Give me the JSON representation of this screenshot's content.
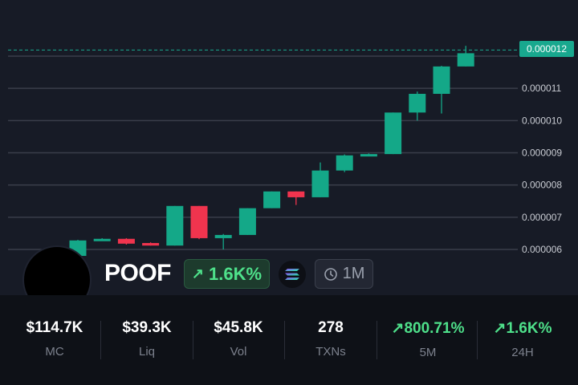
{
  "chart_data": {
    "type": "candlestick",
    "ylim": [
      5.7e-06,
      1.24e-05
    ],
    "y_ticks": [
      "0.000006",
      "0.000007",
      "0.000008",
      "0.000009",
      "0.000010",
      "0.000011",
      "0.000012"
    ],
    "y_tick_values": [
      6e-06,
      7e-06,
      8e-06,
      9e-06,
      1e-05,
      1.1e-05,
      1.2e-05
    ],
    "current_price": "0.000012",
    "current_price_value": 1.209e-05,
    "candles": [
      {
        "o": 5.8e-06,
        "h": 6.3e-06,
        "l": 5.8e-06,
        "c": 6.28e-06
      },
      {
        "o": 6.28e-06,
        "h": 6.35e-06,
        "l": 6.28e-06,
        "c": 6.33e-06
      },
      {
        "o": 6.33e-06,
        "h": 6.35e-06,
        "l": 6.15e-06,
        "c": 6.18e-06
      },
      {
        "o": 6.2e-06,
        "h": 6.22e-06,
        "l": 6.12e-06,
        "c": 6.12e-06
      },
      {
        "o": 6.12e-06,
        "h": 7.35e-06,
        "l": 6.12e-06,
        "c": 7.35e-06
      },
      {
        "o": 7.35e-06,
        "h": 7.35e-06,
        "l": 6.32e-06,
        "c": 6.35e-06
      },
      {
        "o": 6.35e-06,
        "h": 6.48e-06,
        "l": 6e-06,
        "c": 6.45e-06
      },
      {
        "o": 6.45e-06,
        "h": 7.28e-06,
        "l": 6.45e-06,
        "c": 7.28e-06
      },
      {
        "o": 7.28e-06,
        "h": 7.8e-06,
        "l": 7.28e-06,
        "c": 7.8e-06
      },
      {
        "o": 7.8e-06,
        "h": 7.8e-06,
        "l": 7.38e-06,
        "c": 7.62e-06
      },
      {
        "o": 7.62e-06,
        "h": 8.7e-06,
        "l": 7.62e-06,
        "c": 8.45e-06
      },
      {
        "o": 8.45e-06,
        "h": 8.95e-06,
        "l": 8.4e-06,
        "c": 8.92e-06
      },
      {
        "o": 8.92e-06,
        "h": 8.98e-06,
        "l": 8.92e-06,
        "c": 8.96e-06
      },
      {
        "o": 8.96e-06,
        "h": 1.025e-05,
        "l": 8.96e-06,
        "c": 1.025e-05
      },
      {
        "o": 1.025e-05,
        "h": 1.09e-05,
        "l": 1e-05,
        "c": 1.083e-05
      },
      {
        "o": 1.083e-05,
        "h": 1.17e-05,
        "l": 1.022e-05,
        "c": 1.168e-05
      },
      {
        "o": 1.168e-05,
        "h": 1.232e-05,
        "l": 1.168e-05,
        "c": 1.209e-05
      }
    ],
    "colors": {
      "up": "#14a888",
      "down": "#f0344e",
      "grid": "#3a3e4a",
      "axis_text": "#c9ccd3",
      "price_line": "#18a88e"
    }
  },
  "token": {
    "name": "POOF",
    "change": "1.6K%",
    "age": "1M",
    "chain_icon": "solana-icon",
    "avatar": "black-circle"
  },
  "stats": [
    {
      "value": "$114.7K",
      "label": "MC",
      "color": "white"
    },
    {
      "value": "$39.3K",
      "label": "Liq",
      "color": "white"
    },
    {
      "value": "$45.8K",
      "label": "Vol",
      "color": "white"
    },
    {
      "value": "278",
      "label": "TXNs",
      "color": "white"
    },
    {
      "value": "800.71%",
      "label": "5M",
      "color": "green",
      "arrow": "up"
    },
    {
      "value": "1.6K%",
      "label": "24H",
      "color": "green",
      "arrow": "up"
    }
  ]
}
